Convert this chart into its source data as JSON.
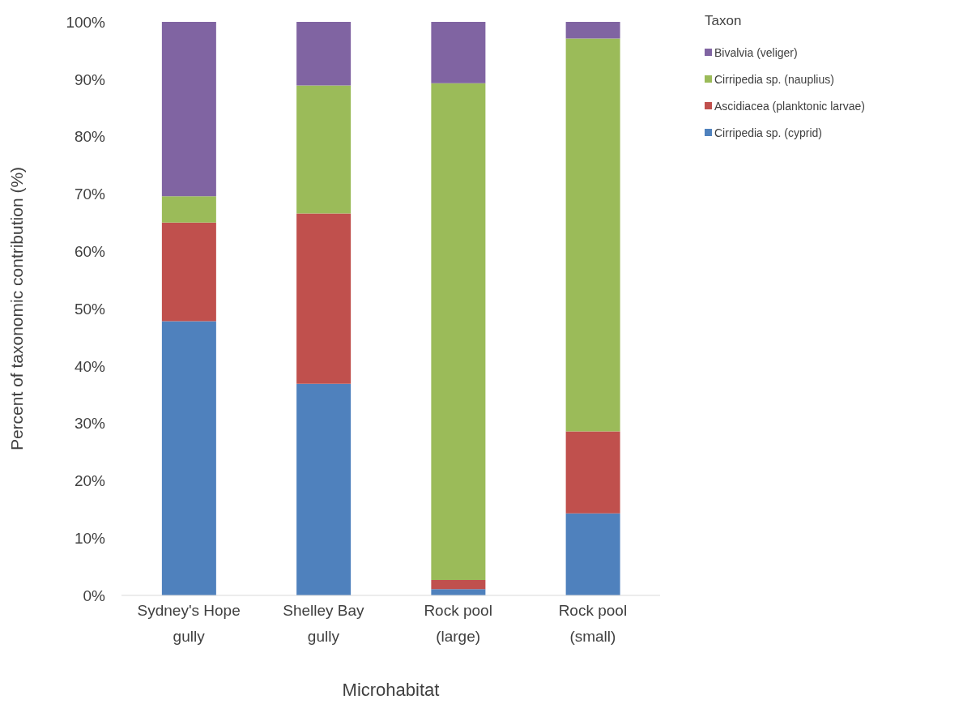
{
  "chart_data": {
    "type": "bar",
    "stacked": true,
    "xlabel": "Microhabitat",
    "ylabel": "Percent of taxonomic contribution (%)",
    "legend_title": "Taxon",
    "categories": [
      "Sydney's Hope gully",
      "Shelley Bay gully",
      "Rock pool (large)",
      "Rock pool (small)"
    ],
    "series": [
      {
        "name": "Cirripedia sp. (cyprid)",
        "color": "#4f81bd",
        "values": [
          47.8,
          36.9,
          1.1,
          14.3
        ]
      },
      {
        "name": "Ascidiacea (planktonic larvae)",
        "color": "#c0504d",
        "values": [
          17.2,
          29.7,
          1.6,
          14.3
        ]
      },
      {
        "name": "Cirripedia sp. (nauplius)",
        "color": "#9bbb59",
        "values": [
          4.6,
          22.3,
          86.6,
          68.5
        ]
      },
      {
        "name": "Bivalvia (veliger)",
        "color": "#8064a2",
        "values": [
          30.4,
          11.1,
          10.7,
          2.9
        ]
      }
    ],
    "ylim": [
      0,
      100
    ],
    "yticks": [
      {
        "value": 0,
        "label": "0%"
      },
      {
        "value": 10,
        "label": "10%"
      },
      {
        "value": 20,
        "label": "20%"
      },
      {
        "value": 30,
        "label": "30%"
      },
      {
        "value": 40,
        "label": "40%"
      },
      {
        "value": 50,
        "label": "50%"
      },
      {
        "value": 60,
        "label": "60%"
      },
      {
        "value": 70,
        "label": "70%"
      },
      {
        "value": 80,
        "label": "80%"
      },
      {
        "value": 90,
        "label": "90%"
      },
      {
        "value": 100,
        "label": "100%"
      }
    ],
    "grid": false,
    "legend": "top right"
  }
}
